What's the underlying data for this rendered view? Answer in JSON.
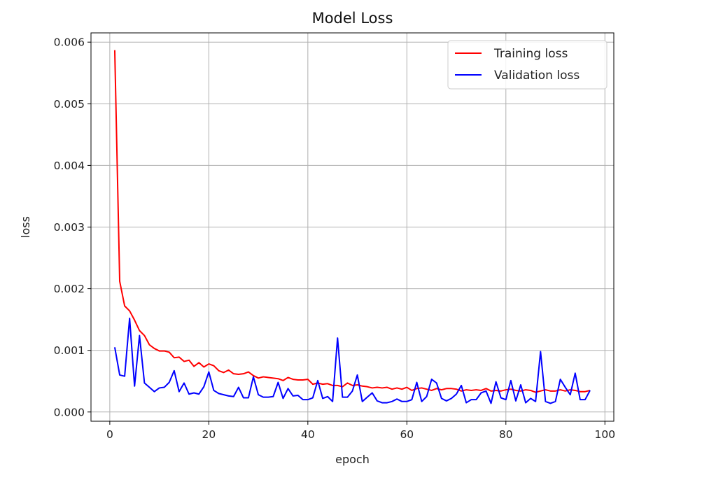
{
  "chart_data": {
    "type": "line",
    "title": "Model Loss",
    "xlabel": "epoch",
    "ylabel": "loss",
    "xlim": [
      -3.8,
      101.8
    ],
    "ylim": [
      -0.00015,
      0.00615
    ],
    "xticks": [
      0,
      20,
      40,
      60,
      80,
      100
    ],
    "xtick_labels": [
      "0",
      "20",
      "40",
      "60",
      "80",
      "100"
    ],
    "yticks": [
      0,
      0.001,
      0.002,
      0.003,
      0.004,
      0.005,
      0.006
    ],
    "ytick_labels": [
      "0.000",
      "0.001",
      "0.002",
      "0.003",
      "0.004",
      "0.005",
      "0.006"
    ],
    "grid": true,
    "legend_position": "top-right",
    "x": [
      1,
      2,
      3,
      4,
      5,
      6,
      7,
      8,
      9,
      10,
      11,
      12,
      13,
      14,
      15,
      16,
      17,
      18,
      19,
      20,
      21,
      22,
      23,
      24,
      25,
      26,
      27,
      28,
      29,
      30,
      31,
      32,
      33,
      34,
      35,
      36,
      37,
      38,
      39,
      40,
      41,
      42,
      43,
      44,
      45,
      46,
      47,
      48,
      49,
      50,
      51,
      52,
      53,
      54,
      55,
      56,
      57,
      58,
      59,
      60,
      61,
      62,
      63,
      64,
      65,
      66,
      67,
      68,
      69,
      70,
      71,
      72,
      73,
      74,
      75,
      76,
      77,
      78,
      79,
      80,
      81,
      82,
      83,
      84,
      85,
      86,
      87,
      88,
      89,
      90,
      91,
      92,
      93,
      94,
      95,
      96,
      97
    ],
    "series": [
      {
        "name": "Training loss",
        "color": "#ff0000",
        "values": [
          0.00587,
          0.00212,
          0.00172,
          0.00164,
          0.00149,
          0.00132,
          0.00124,
          0.00109,
          0.00103,
          0.00099,
          0.00099,
          0.00097,
          0.00088,
          0.00089,
          0.00082,
          0.00084,
          0.00074,
          0.0008,
          0.00073,
          0.00078,
          0.00075,
          0.00067,
          0.00064,
          0.00068,
          0.00062,
          0.00061,
          0.00062,
          0.00065,
          0.00059,
          0.00055,
          0.00057,
          0.00056,
          0.00055,
          0.00054,
          0.00051,
          0.00056,
          0.00053,
          0.00052,
          0.00052,
          0.00053,
          0.00045,
          0.00047,
          0.00045,
          0.00046,
          0.00043,
          0.00043,
          0.00041,
          0.00047,
          0.00043,
          0.00044,
          0.00042,
          0.00041,
          0.00039,
          0.0004,
          0.00039,
          0.0004,
          0.00037,
          0.00039,
          0.00037,
          0.0004,
          0.00035,
          0.00038,
          0.00039,
          0.00037,
          0.00035,
          0.00038,
          0.00036,
          0.00038,
          0.00038,
          0.00037,
          0.00034,
          0.00036,
          0.00035,
          0.00036,
          0.00035,
          0.00038,
          0.00034,
          0.00035,
          0.00034,
          0.00036,
          0.00037,
          0.00035,
          0.00034,
          0.00036,
          0.00035,
          0.00032,
          0.00034,
          0.00036,
          0.00034,
          0.00034,
          0.00036,
          0.00034,
          0.00036,
          0.00035,
          0.00033,
          0.00033,
          0.00035
        ]
      },
      {
        "name": "Validation loss",
        "color": "#0000ff",
        "values": [
          0.00105,
          0.0006,
          0.00058,
          0.00152,
          0.00042,
          0.00124,
          0.00047,
          0.0004,
          0.00033,
          0.00039,
          0.0004,
          0.00048,
          0.00067,
          0.00033,
          0.00047,
          0.00029,
          0.00031,
          0.00029,
          0.00041,
          0.00065,
          0.00035,
          0.0003,
          0.00028,
          0.00026,
          0.00025,
          0.0004,
          0.00023,
          0.00023,
          0.00057,
          0.00028,
          0.00024,
          0.00024,
          0.00025,
          0.00048,
          0.00022,
          0.00038,
          0.00026,
          0.00027,
          0.0002,
          0.0002,
          0.00023,
          0.00051,
          0.00022,
          0.00025,
          0.00017,
          0.0012,
          0.00024,
          0.00024,
          0.00034,
          0.0006,
          0.00017,
          0.00024,
          0.00031,
          0.00018,
          0.00015,
          0.00015,
          0.00017,
          0.00021,
          0.00017,
          0.00017,
          0.0002,
          0.00048,
          0.00017,
          0.00025,
          0.00053,
          0.00047,
          0.00022,
          0.00018,
          0.00022,
          0.00029,
          0.00043,
          0.00015,
          0.0002,
          0.0002,
          0.00031,
          0.00034,
          0.00014,
          0.00049,
          0.00023,
          0.0002,
          0.00051,
          0.00018,
          0.00044,
          0.00015,
          0.00022,
          0.00017,
          0.00098,
          0.00017,
          0.00014,
          0.00017,
          0.00053,
          0.0004,
          0.00028,
          0.00063,
          0.0002,
          0.0002,
          0.00035
        ]
      }
    ]
  }
}
